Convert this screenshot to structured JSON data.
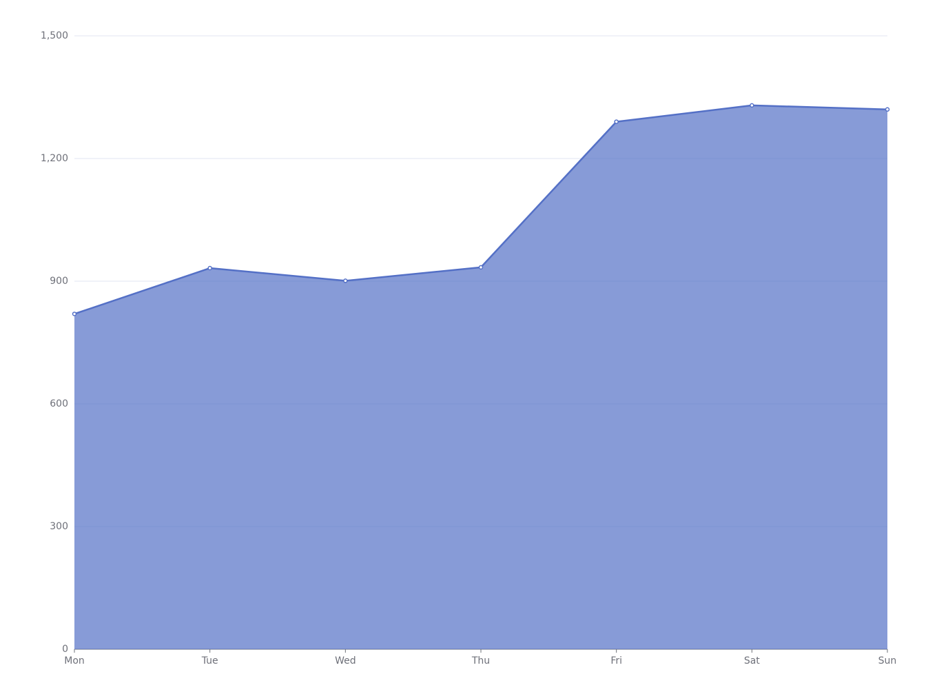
{
  "chart_data": {
    "type": "area",
    "categories": [
      "Mon",
      "Tue",
      "Wed",
      "Thu",
      "Fri",
      "Sat",
      "Sun"
    ],
    "series": [
      {
        "color": "#5470c6",
        "values": [
          820,
          932,
          901,
          934,
          1290,
          1330,
          1320
        ]
      }
    ],
    "ylim": [
      0,
      1500
    ],
    "yticks": [
      0,
      300,
      600,
      900,
      {
        "value": 1200,
        "label": "1,200"
      },
      {
        "value": 1500,
        "label": "1,500"
      }
    ],
    "grid": true
  }
}
